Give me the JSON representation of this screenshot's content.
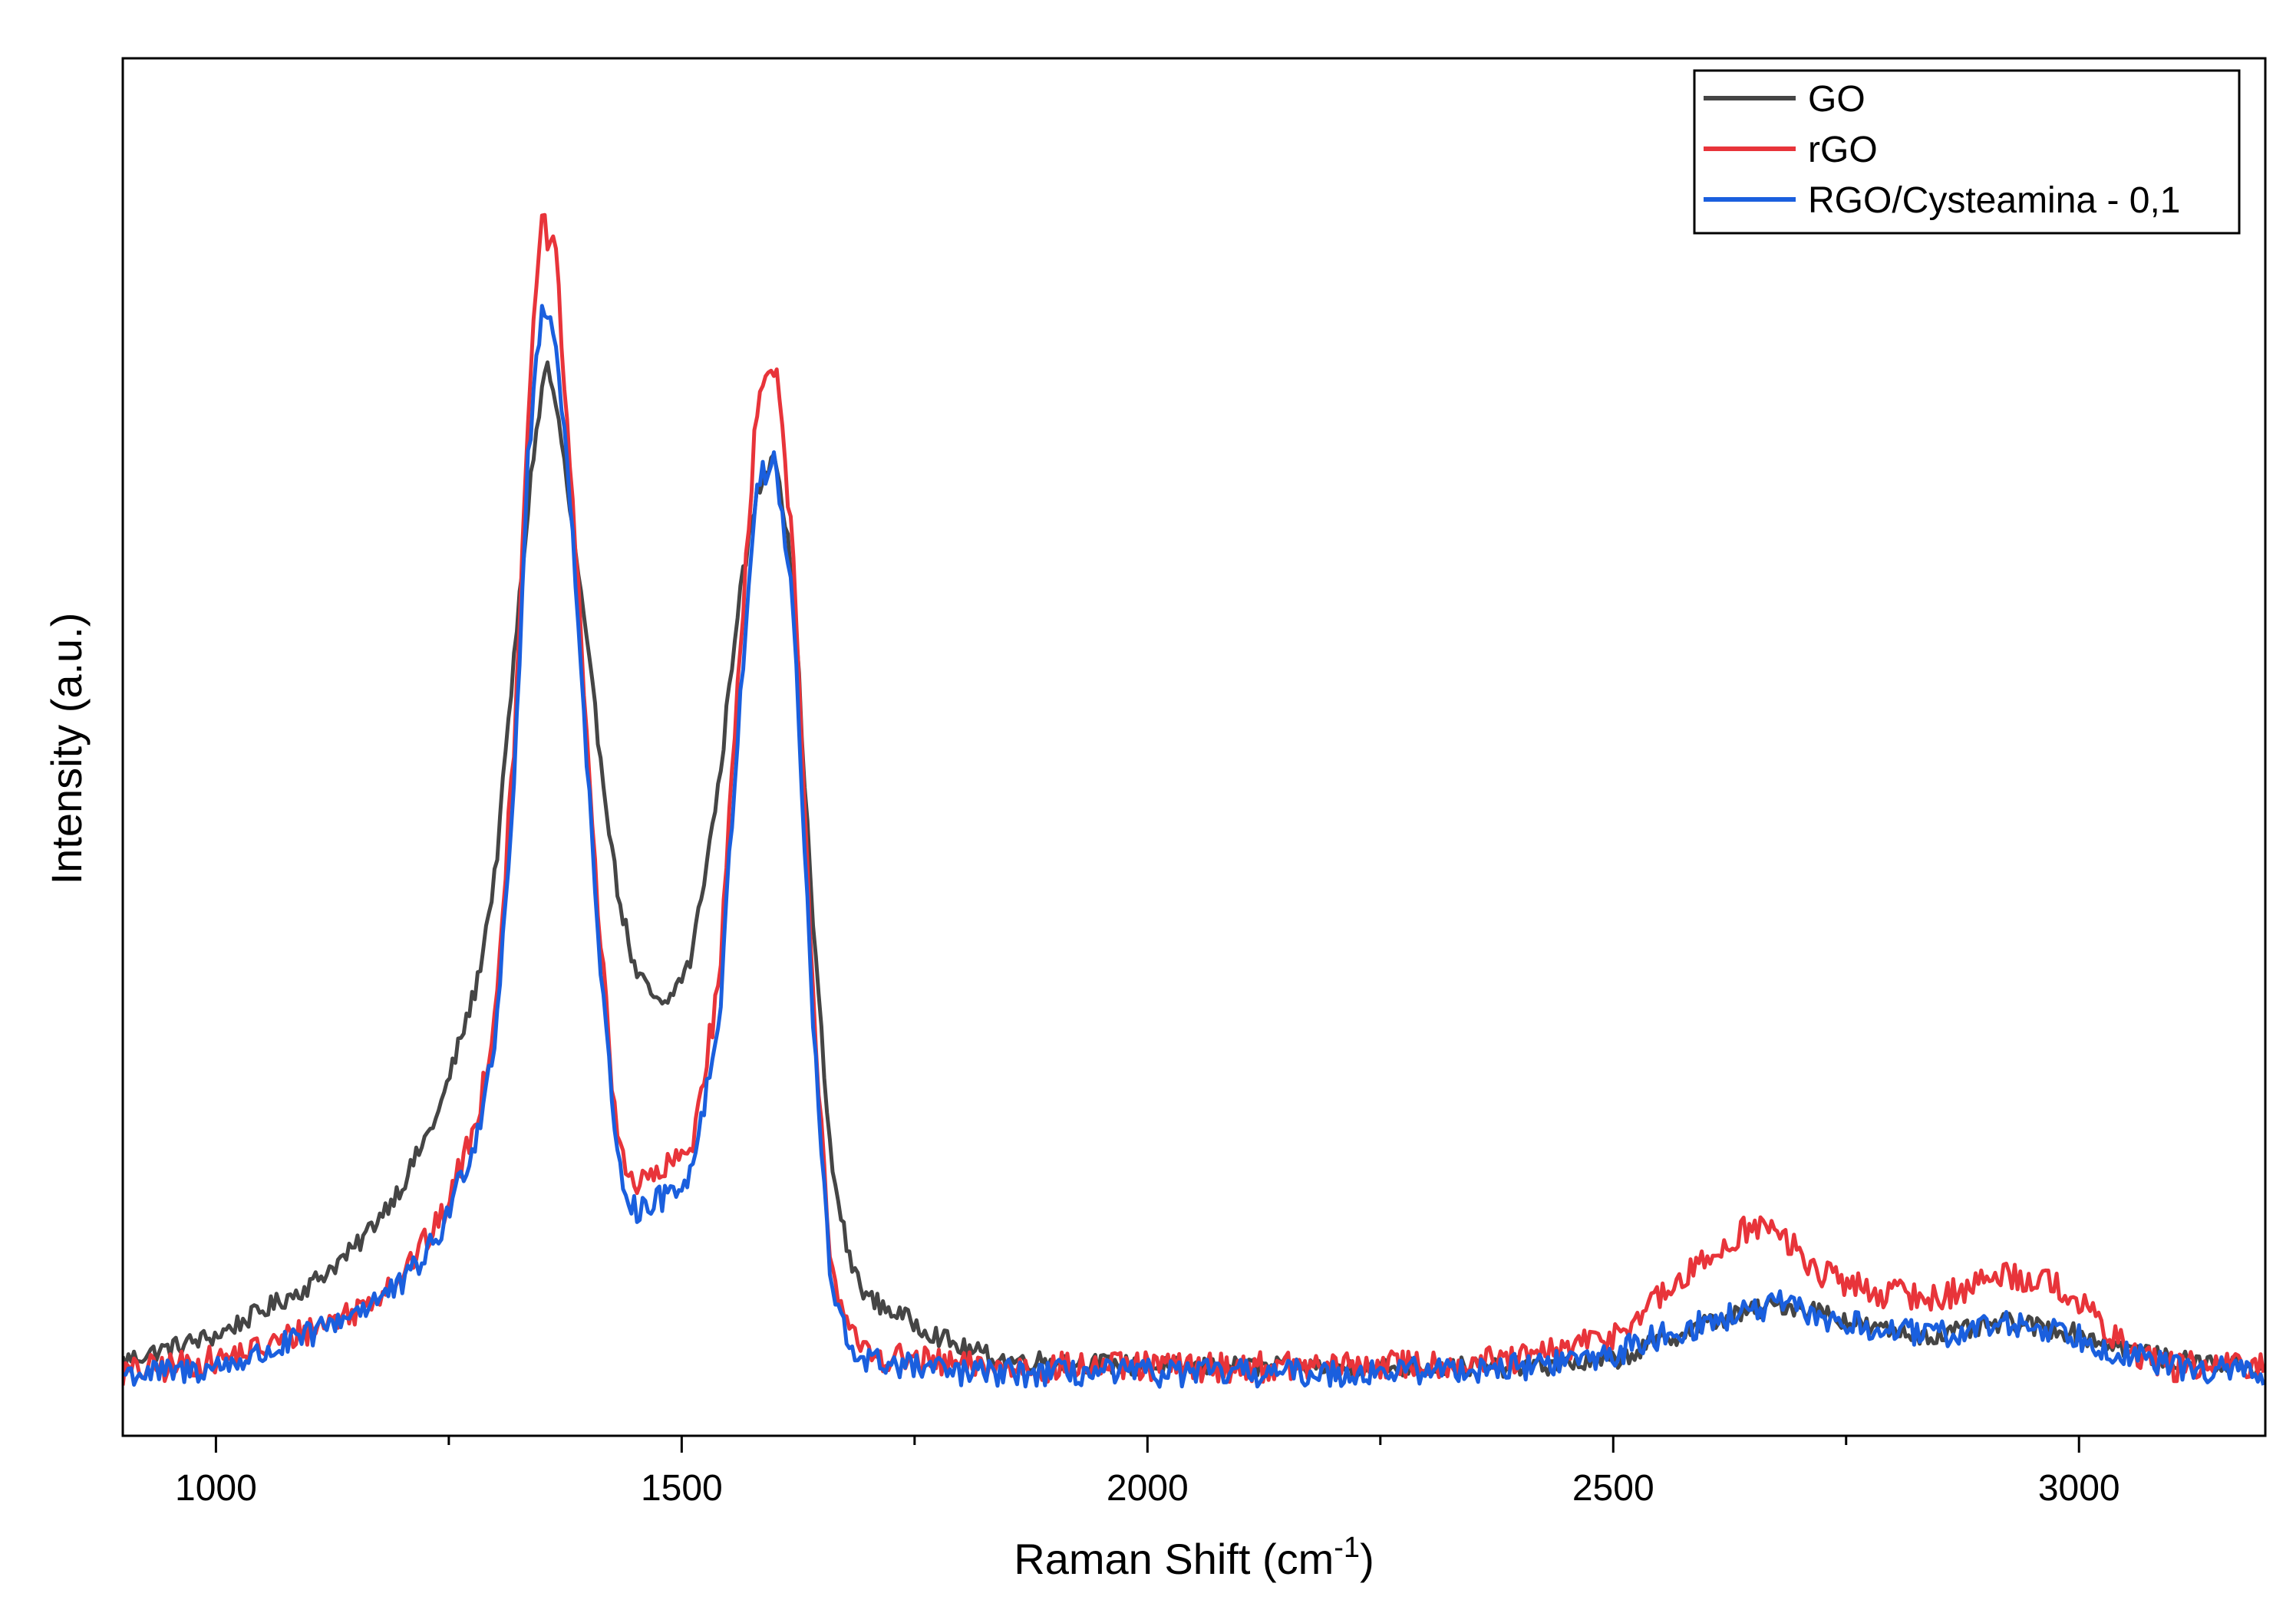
{
  "chart_data": {
    "type": "line",
    "title": "",
    "xlabel_main": "Raman Shift (cm",
    "xlabel_sup": "-1",
    "xlabel_end": ")",
    "ylabel": "Intensity (a.u.)",
    "xlim": [
      900,
      3200
    ],
    "ylim": [
      0,
      1.1
    ],
    "x_ticks_major": [
      "1000",
      "1500",
      "2000",
      "2500",
      "3000"
    ],
    "x_ticks_minor": [
      1250,
      1750,
      2250,
      2750
    ],
    "y_ticks": [],
    "grid": false,
    "legend_position": "top-right",
    "series": [
      {
        "name": "GO",
        "color": "#454545",
        "noise": 0.008,
        "x": [
          900,
          950,
          1000,
          1050,
          1100,
          1150,
          1200,
          1240,
          1280,
          1300,
          1320,
          1340,
          1355,
          1370,
          1390,
          1410,
          1430,
          1450,
          1480,
          1510,
          1540,
          1560,
          1580,
          1600,
          1620,
          1640,
          1660,
          1680,
          1700,
          1750,
          1800,
          1850,
          1900,
          2000,
          2200,
          2400,
          2500,
          2550,
          2600,
          2650,
          2680,
          2720,
          2780,
          2850,
          2920,
          2980,
          3050,
          3100,
          3200
        ],
        "y": [
          0.06,
          0.07,
          0.08,
          0.1,
          0.12,
          0.15,
          0.2,
          0.26,
          0.36,
          0.45,
          0.62,
          0.78,
          0.86,
          0.8,
          0.68,
          0.56,
          0.44,
          0.37,
          0.34,
          0.38,
          0.52,
          0.66,
          0.75,
          0.79,
          0.68,
          0.42,
          0.22,
          0.14,
          0.11,
          0.09,
          0.07,
          0.06,
          0.06,
          0.055,
          0.055,
          0.055,
          0.06,
          0.075,
          0.09,
          0.1,
          0.105,
          0.1,
          0.085,
          0.08,
          0.09,
          0.085,
          0.07,
          0.06,
          0.055
        ]
      },
      {
        "name": "rGO",
        "color": "#e8343a",
        "noise": 0.012,
        "x": [
          900,
          950,
          1000,
          1050,
          1100,
          1150,
          1200,
          1240,
          1280,
          1300,
          1320,
          1335,
          1350,
          1365,
          1385,
          1410,
          1430,
          1450,
          1480,
          1510,
          1540,
          1560,
          1580,
          1600,
          1620,
          1640,
          1660,
          1680,
          1700,
          1750,
          1800,
          1850,
          1900,
          2000,
          2200,
          2400,
          2500,
          2550,
          2600,
          2650,
          2680,
          2720,
          2780,
          2850,
          2920,
          2980,
          3050,
          3100,
          3200
        ],
        "y": [
          0.05,
          0.055,
          0.06,
          0.07,
          0.085,
          0.1,
          0.13,
          0.17,
          0.25,
          0.34,
          0.55,
          0.82,
          0.97,
          0.94,
          0.72,
          0.42,
          0.24,
          0.2,
          0.21,
          0.23,
          0.36,
          0.6,
          0.82,
          0.86,
          0.7,
          0.36,
          0.14,
          0.08,
          0.065,
          0.06,
          0.055,
          0.055,
          0.055,
          0.055,
          0.055,
          0.06,
          0.08,
          0.11,
          0.14,
          0.17,
          0.16,
          0.13,
          0.115,
          0.11,
          0.13,
          0.12,
          0.07,
          0.055,
          0.055
        ]
      },
      {
        "name": "RGO/Cysteamina - 0,1",
        "color": "#1a5fde",
        "noise": 0.011,
        "x": [
          900,
          950,
          1000,
          1050,
          1100,
          1150,
          1200,
          1240,
          1280,
          1300,
          1320,
          1335,
          1350,
          1365,
          1385,
          1410,
          1430,
          1450,
          1480,
          1510,
          1540,
          1560,
          1580,
          1600,
          1620,
          1640,
          1660,
          1680,
          1700,
          1750,
          1800,
          1850,
          1900,
          2000,
          2200,
          2400,
          2500,
          2550,
          2600,
          2650,
          2680,
          2720,
          2780,
          2850,
          2920,
          2980,
          3050,
          3100,
          3200
        ],
        "y": [
          0.05,
          0.05,
          0.055,
          0.065,
          0.08,
          0.1,
          0.12,
          0.16,
          0.24,
          0.32,
          0.52,
          0.78,
          0.9,
          0.88,
          0.7,
          0.4,
          0.22,
          0.18,
          0.19,
          0.21,
          0.33,
          0.56,
          0.76,
          0.78,
          0.66,
          0.34,
          0.12,
          0.07,
          0.06,
          0.055,
          0.05,
          0.05,
          0.05,
          0.05,
          0.05,
          0.055,
          0.065,
          0.08,
          0.09,
          0.1,
          0.105,
          0.095,
          0.085,
          0.08,
          0.09,
          0.085,
          0.065,
          0.055,
          0.05
        ]
      }
    ]
  }
}
